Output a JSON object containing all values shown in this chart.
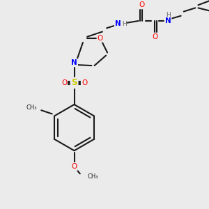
{
  "bg_color": "#ebebeb",
  "bond_color": "#1a1a1a",
  "bond_lw": 1.5,
  "atom_colors": {
    "O": "#ff0000",
    "N": "#0000ff",
    "S": "#cccc00",
    "C": "#1a1a1a",
    "H": "#666666"
  },
  "font_size": 7.5,
  "font_size_small": 6.5
}
